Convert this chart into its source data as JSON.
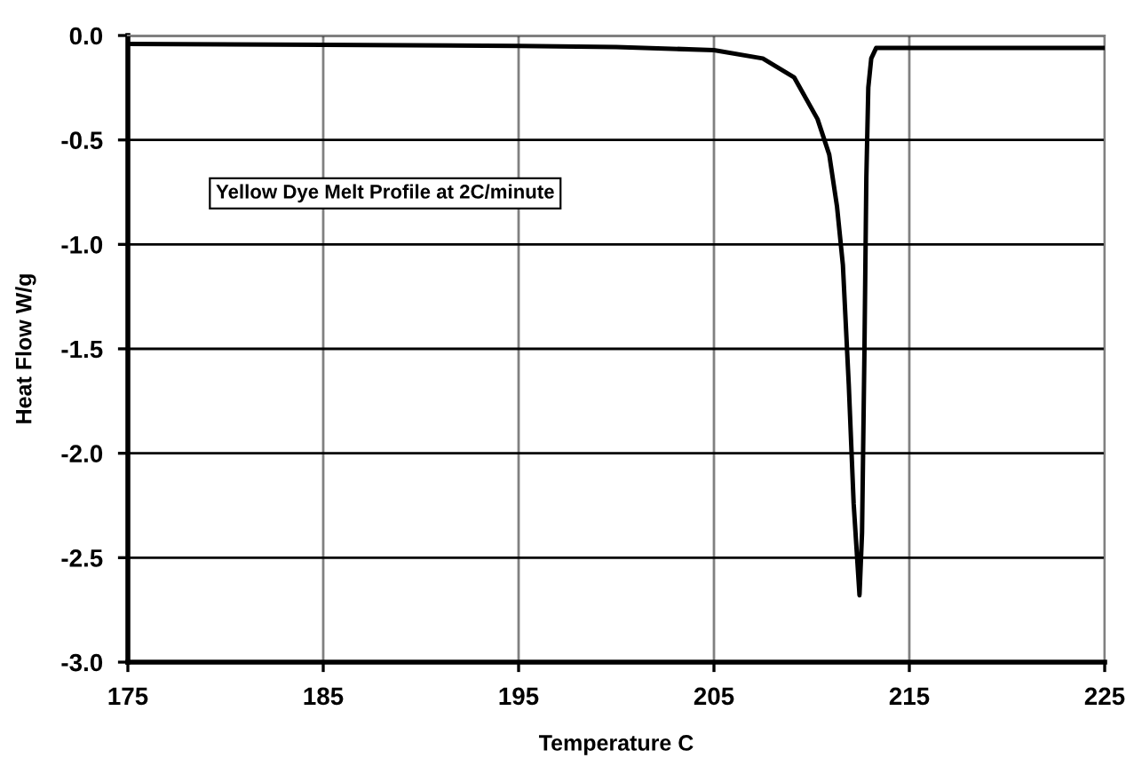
{
  "chart_data": {
    "type": "line",
    "xlabel": "Temperature C",
    "ylabel": "Heat Flow W/g",
    "annotations": [
      "Yellow Dye Melt Profile at 2C/minute"
    ],
    "series": [
      {
        "color": "#000000",
        "x": [
          175,
          185,
          195,
          200,
          205,
          207.5,
          209.1,
          210.3,
          210.9,
          211.3,
          211.6,
          211.9,
          212.15,
          212.45,
          212.58,
          212.7,
          212.8,
          212.9,
          213.05,
          213.3,
          219,
          225
        ],
        "values": [
          -0.04,
          -0.045,
          -0.05,
          -0.055,
          -0.07,
          -0.11,
          -0.2,
          -0.4,
          -0.57,
          -0.82,
          -1.1,
          -1.67,
          -2.24,
          -2.68,
          -2.38,
          -1.53,
          -0.68,
          -0.25,
          -0.11,
          -0.06,
          -0.06,
          -0.06
        ]
      }
    ],
    "xlim": [
      175,
      225
    ],
    "xticks": [
      175,
      185,
      195,
      205,
      215,
      225
    ],
    "ylim": [
      -3.0,
      0.0
    ],
    "yticks": [
      {
        "value": -3.0,
        "label": "-3.0"
      },
      {
        "value": -2.5,
        "label": "-2.5"
      },
      {
        "value": -2.0,
        "label": "-2.0"
      },
      {
        "value": -1.5,
        "label": "-1.5"
      },
      {
        "value": -1.0,
        "label": "-1.0"
      },
      {
        "value": -0.5,
        "label": "-0.5"
      },
      {
        "value": 0.0,
        "label": "0.0"
      }
    ],
    "grid": true,
    "marker": "none",
    "line_style": "solid"
  }
}
